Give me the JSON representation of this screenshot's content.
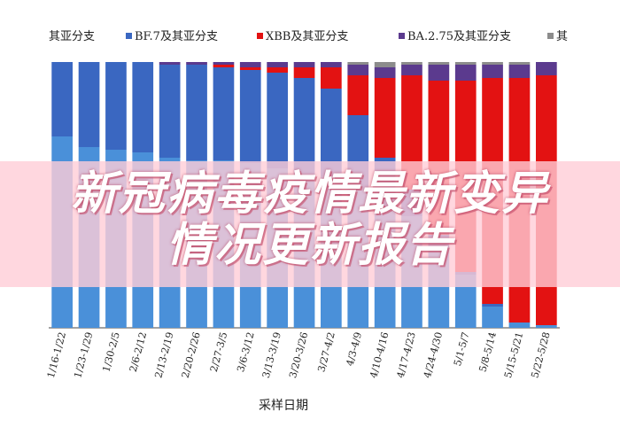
{
  "banner": {
    "title_line1": "新冠病毒疫情最新变异",
    "title_line2": "情况更新报告"
  },
  "chart_data": {
    "type": "bar",
    "stacked": true,
    "percent": true,
    "xlabel": "采样日期",
    "ylabel": "",
    "ylim": [
      0,
      100
    ],
    "categories": [
      "1/16-1/22",
      "1/23-1/29",
      "1/30-2/5",
      "2/6-2/12",
      "2/13-2/19",
      "2/20-2/26",
      "2/27-3/5",
      "3/6-3/12",
      "3/13-3/19",
      "3/20-3/26",
      "3/27-4/2",
      "4/3-4/9",
      "4/10-4/16",
      "4/17-4/23",
      "4/24-4/30",
      "5/1-5/7",
      "5/8-5/14",
      "5/15-5/21",
      "5/22-5/28"
    ],
    "legend_placement": "top",
    "series": [
      {
        "name": "其亚分支",
        "color": "#4a90d9",
        "values": [
          72,
          68,
          67,
          66,
          64,
          63,
          63,
          62,
          60,
          58,
          57,
          52,
          45,
          42,
          30,
          20,
          8,
          2,
          1
        ]
      },
      {
        "name": "BF.7及其亚分支",
        "color": "#3a67c1",
        "values": [
          28,
          32,
          33,
          34,
          35,
          36,
          35,
          35,
          36,
          36,
          33,
          28,
          19,
          10,
          5,
          1,
          1,
          0,
          0
        ]
      },
      {
        "name": "XBB及其亚分支",
        "color": "#e31212",
        "values": [
          0,
          0,
          0,
          0,
          0,
          0,
          1,
          1,
          2,
          4,
          8,
          15,
          30,
          43,
          58,
          72,
          85,
          92,
          94
        ]
      },
      {
        "name": "BA.2.75及其亚分支",
        "color": "#5b3a8e",
        "values": [
          0,
          0,
          0,
          0,
          1,
          1,
          1,
          2,
          2,
          2,
          2,
          4,
          4,
          4,
          6,
          6,
          5,
          5,
          5
        ]
      },
      {
        "name": "其",
        "color": "#8c8c8c",
        "values": [
          0,
          0,
          0,
          0,
          0,
          0,
          0,
          0,
          0,
          0,
          0,
          1,
          2,
          1,
          1,
          1,
          1,
          1,
          0
        ]
      }
    ]
  }
}
